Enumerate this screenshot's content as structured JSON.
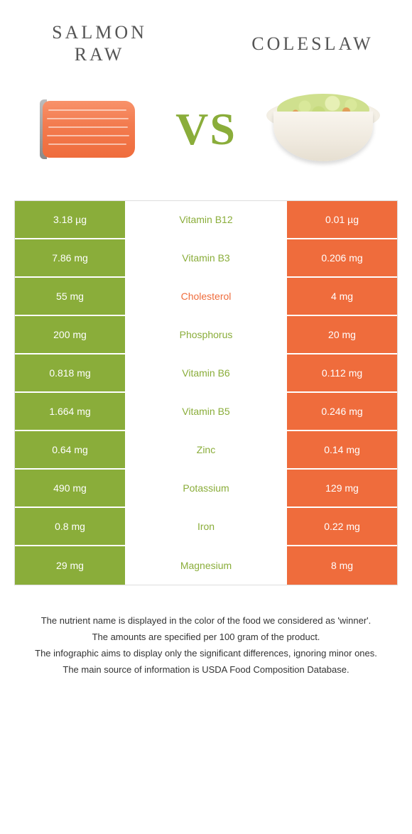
{
  "header": {
    "left_title_line1": "Salmon",
    "left_title_line2": "raw",
    "right_title": "Coleslaw",
    "vs_label": "VS"
  },
  "colors": {
    "left": "#8aad3a",
    "right": "#ef6c3c",
    "left_text": "#8aad3a",
    "right_text": "#ef6c3c",
    "background": "#ffffff"
  },
  "rows": [
    {
      "nutrient": "Vitamin B12",
      "left": "3.18 µg",
      "right": "0.01 µg",
      "winner": "left"
    },
    {
      "nutrient": "Vitamin B3",
      "left": "7.86 mg",
      "right": "0.206 mg",
      "winner": "left"
    },
    {
      "nutrient": "Cholesterol",
      "left": "55 mg",
      "right": "4 mg",
      "winner": "right"
    },
    {
      "nutrient": "Phosphorus",
      "left": "200 mg",
      "right": "20 mg",
      "winner": "left"
    },
    {
      "nutrient": "Vitamin B6",
      "left": "0.818 mg",
      "right": "0.112 mg",
      "winner": "left"
    },
    {
      "nutrient": "Vitamin B5",
      "left": "1.664 mg",
      "right": "0.246 mg",
      "winner": "left"
    },
    {
      "nutrient": "Zinc",
      "left": "0.64 mg",
      "right": "0.14 mg",
      "winner": "left"
    },
    {
      "nutrient": "Potassium",
      "left": "490 mg",
      "right": "129 mg",
      "winner": "left"
    },
    {
      "nutrient": "Iron",
      "left": "0.8 mg",
      "right": "0.22 mg",
      "winner": "left"
    },
    {
      "nutrient": "Magnesium",
      "left": "29 mg",
      "right": "8 mg",
      "winner": "left"
    }
  ],
  "footnotes": [
    "The nutrient name is displayed in the color of the food we considered as 'winner'.",
    "The amounts are specified per 100 gram of the product.",
    "The infographic aims to display only the significant differences, ignoring minor ones.",
    "The main source of information is USDA Food Composition Database."
  ]
}
